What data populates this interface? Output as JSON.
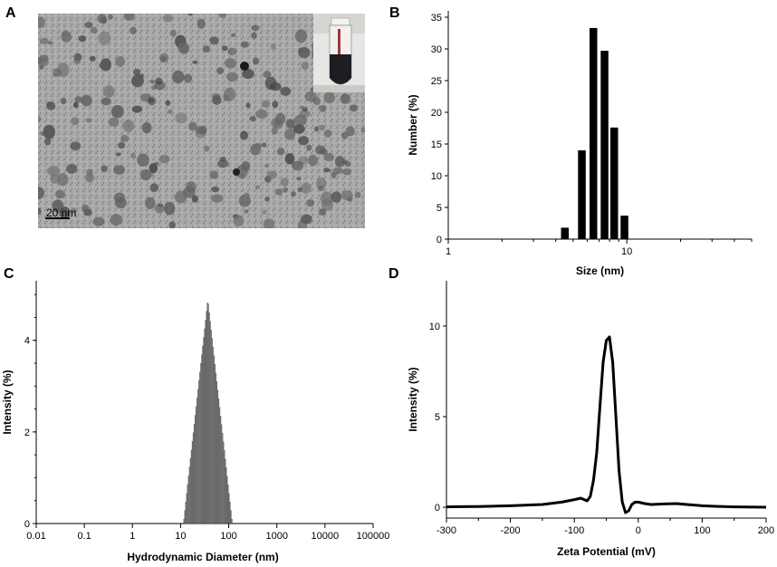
{
  "panels": {
    "A": {
      "letter": "A",
      "scale_bar_label": "20 nm"
    },
    "B": {
      "letter": "B"
    },
    "C": {
      "letter": "C"
    },
    "D": {
      "letter": "D"
    }
  },
  "chart_data": [
    {
      "panel": "B",
      "type": "bar",
      "xlabel": "Size (nm)",
      "ylabel": "Number (%)",
      "x_scale": "log",
      "xlim": [
        1,
        50
      ],
      "ylim": [
        0,
        36
      ],
      "x_ticks": [
        1,
        10
      ],
      "x_tick_labels": [
        "1",
        "10"
      ],
      "y_ticks": [
        0,
        5,
        10,
        15,
        20,
        25,
        30,
        35
      ],
      "x": [
        4.5,
        5.6,
        6.5,
        7.5,
        8.5,
        9.7
      ],
      "values": [
        1.8,
        14.0,
        33.3,
        29.7,
        17.6,
        3.7
      ]
    },
    {
      "panel": "C",
      "type": "bar",
      "xlabel": "Hydrodynamic Diameter (nm)",
      "ylabel": "Intensity (%)",
      "x_scale": "log",
      "xlim": [
        0.01,
        100000
      ],
      "ylim": [
        0,
        5.3
      ],
      "x_ticks": [
        0.01,
        0.1,
        1,
        10,
        100,
        1000,
        10000,
        100000
      ],
      "x_tick_labels": [
        "0.01",
        "0.1",
        "1",
        "10",
        "100",
        "1000",
        "10000",
        "100000"
      ],
      "y_ticks": [
        0,
        2,
        4
      ],
      "distribution": {
        "min_x": 11.5,
        "peak_x": 37,
        "max_x": 120,
        "peak_value": 4.9,
        "bins": 52
      }
    },
    {
      "panel": "D",
      "type": "line",
      "xlabel": "Zeta Potential (mV)",
      "ylabel": "Intensity (%)",
      "xlim": [
        -300,
        200
      ],
      "ylim": [
        -0.6,
        12.5
      ],
      "x_ticks": [
        -300,
        -200,
        -100,
        0,
        100,
        200
      ],
      "y_ticks": [
        0,
        5,
        10
      ],
      "x": [
        -300,
        -250,
        -200,
        -150,
        -120,
        -100,
        -90,
        -80,
        -75,
        -70,
        -65,
        -60,
        -55,
        -50,
        -45,
        -40,
        -35,
        -30,
        -25,
        -20,
        -15,
        -10,
        -5,
        0,
        10,
        20,
        40,
        60,
        80,
        100,
        120,
        150,
        200
      ],
      "y": [
        0.02,
        0.04,
        0.08,
        0.15,
        0.28,
        0.42,
        0.5,
        0.35,
        0.6,
        1.5,
        3.0,
        5.5,
        8.0,
        9.2,
        9.4,
        8.0,
        5.0,
        2.0,
        0.3,
        -0.3,
        -0.2,
        0.15,
        0.28,
        0.28,
        0.2,
        0.15,
        0.18,
        0.2,
        0.14,
        0.08,
        0.05,
        0.02,
        0.0
      ]
    }
  ]
}
